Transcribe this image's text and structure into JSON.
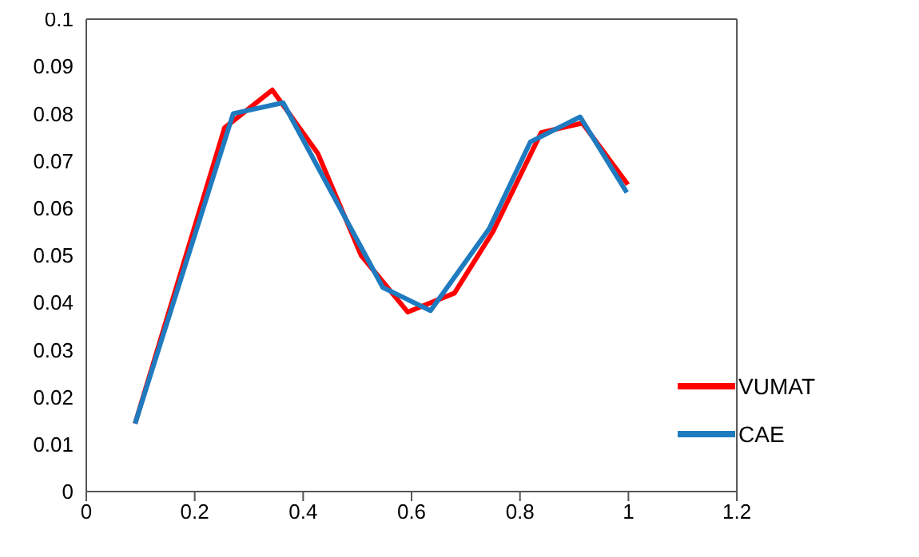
{
  "chart_data": {
    "type": "line",
    "xlim": [
      0,
      1.2
    ],
    "xticks": [
      0,
      0.2,
      0.4,
      0.6,
      0.8,
      1,
      1.2
    ],
    "ylim": [
      0,
      0.1
    ],
    "yticks": [
      0,
      0.01,
      0.02,
      0.03,
      0.04,
      0.05,
      0.06,
      0.07,
      0.08,
      0.09,
      0.1
    ],
    "legend": "bottom right",
    "marker": "none",
    "line_style": "solid",
    "series": [
      {
        "name": "VUMAT",
        "color": "#ff0000",
        "x": [
          0.09,
          0.255,
          0.343,
          0.427,
          0.507,
          0.593,
          0.679,
          0.75,
          0.839,
          0.915,
          0.999
        ],
        "values": [
          0.0144,
          0.077,
          0.085,
          0.0716,
          0.05,
          0.038,
          0.042,
          0.055,
          0.076,
          0.078,
          0.065
        ]
      },
      {
        "name": "CAE",
        "color": "#1f7bbf",
        "x": [
          0.09,
          0.271,
          0.363,
          0.547,
          0.635,
          0.743,
          0.819,
          0.911,
          0.997
        ],
        "values": [
          0.0144,
          0.08,
          0.0823,
          0.0432,
          0.0383,
          0.0556,
          0.074,
          0.0793,
          0.0633
        ]
      }
    ]
  }
}
